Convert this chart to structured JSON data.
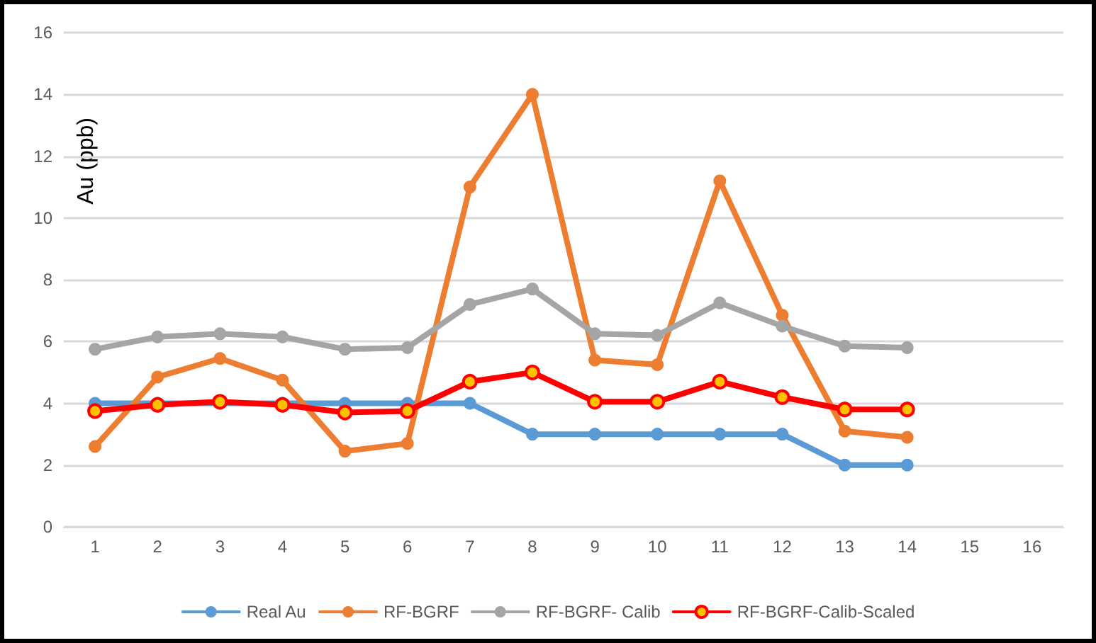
{
  "chart_data": {
    "type": "line",
    "ylabel": "Au (ppb)",
    "categories": [
      "1",
      "2",
      "3",
      "4",
      "5",
      "6",
      "7",
      "8",
      "9",
      "10",
      "11",
      "12",
      "13",
      "14",
      "15",
      "16"
    ],
    "series": [
      {
        "name": "Real Au",
        "color": "#5b9bd5",
        "values": [
          4,
          4,
          4,
          4,
          4,
          4,
          4,
          3,
          3,
          3,
          3,
          3,
          2,
          2,
          null,
          null
        ]
      },
      {
        "name": "RF-BGRF",
        "color": "#ed7d31",
        "values": [
          2.6,
          4.85,
          5.45,
          4.75,
          2.45,
          2.7,
          11,
          14,
          5.4,
          5.25,
          11.2,
          6.85,
          3.1,
          2.9,
          null,
          null
        ]
      },
      {
        "name": "RF-BGRF- Calib",
        "color": "#a5a5a5",
        "values": [
          5.75,
          6.15,
          6.25,
          6.15,
          5.75,
          5.8,
          7.2,
          7.7,
          6.25,
          6.2,
          7.25,
          6.5,
          5.85,
          5.8,
          null,
          null
        ]
      },
      {
        "name": "RF-BGRF-Calib-Scaled",
        "color": "#ff0000",
        "values": [
          3.75,
          3.95,
          4.05,
          3.95,
          3.7,
          3.75,
          4.7,
          5.0,
          4.05,
          4.05,
          4.7,
          4.2,
          3.8,
          3.8,
          null,
          null
        ]
      }
    ],
    "ylim": [
      0,
      16
    ],
    "yticks": [
      0,
      2,
      4,
      6,
      8,
      10,
      12,
      14,
      16
    ],
    "grid": "y",
    "legend": "bottom",
    "marker": "circle",
    "line_style": "solid"
  }
}
